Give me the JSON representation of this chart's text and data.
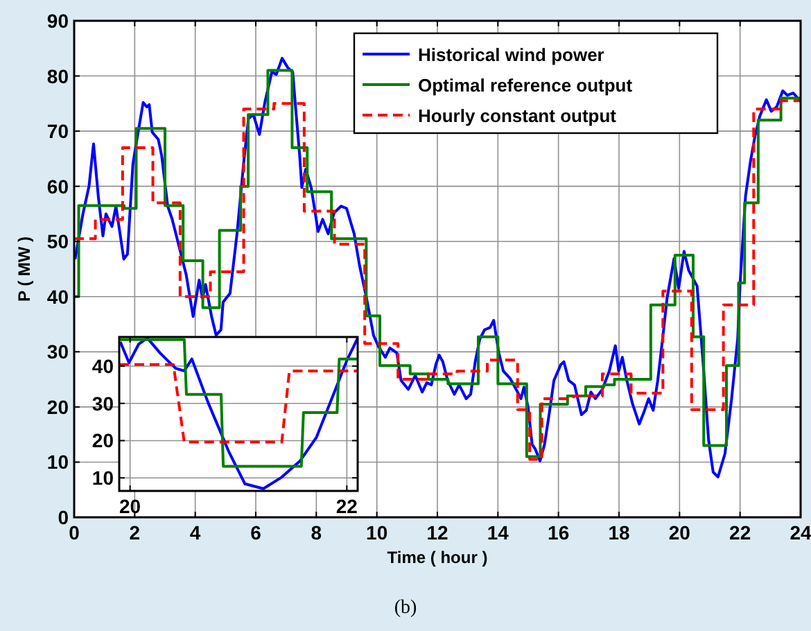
{
  "chart_data": [
    {
      "type": "line",
      "xlabel": "Time ( hour )",
      "ylabel": "P ( MW )",
      "xlim": [
        0,
        24
      ],
      "ylim": [
        0,
        90
      ],
      "xticks": [
        0,
        2,
        4,
        6,
        8,
        10,
        12,
        14,
        16,
        18,
        20,
        22,
        24
      ],
      "yticks": [
        0,
        10,
        20,
        30,
        40,
        50,
        60,
        70,
        80,
        90
      ],
      "grid": true,
      "legend": "top right",
      "annotations": [
        "(b)"
      ],
      "series": [
        {
          "name": "Historical wind power",
          "color": "#0000ff",
          "line_style": "solid",
          "x": [
            0.03,
            0.29,
            0.49,
            0.64,
            0.8,
            0.95,
            1.05,
            1.25,
            1.38,
            1.64,
            1.76,
            1.94,
            2.1,
            2.28,
            2.4,
            2.48,
            2.58,
            2.78,
            2.89,
            3.09,
            3.24,
            3.47,
            3.7,
            3.93,
            4.13,
            4.24,
            4.34,
            4.54,
            4.69,
            4.85,
            4.92,
            5.15,
            5.38,
            5.61,
            5.76,
            5.92,
            6.12,
            6.3,
            6.53,
            6.68,
            6.87,
            7.06,
            7.22,
            7.32,
            7.45,
            7.52,
            7.65,
            7.83,
            8.06,
            8.21,
            8.39,
            8.59,
            8.82,
            9.0,
            9.25,
            9.43,
            9.66,
            9.89,
            10.05,
            10.28,
            10.43,
            10.66,
            10.8,
            11.04,
            11.27,
            11.5,
            11.65,
            11.8,
            11.95,
            12.06,
            12.18,
            12.34,
            12.56,
            12.72,
            12.95,
            13.1,
            13.25,
            13.4,
            13.56,
            13.74,
            13.86,
            14.03,
            14.18,
            14.4,
            14.6,
            14.76,
            14.86,
            15.0,
            15.13,
            15.24,
            15.39,
            15.54,
            15.7,
            15.85,
            16.08,
            16.18,
            16.34,
            16.53,
            16.76,
            16.92,
            17.07,
            17.22,
            17.45,
            17.68,
            17.88,
            17.99,
            18.11,
            18.26,
            18.44,
            18.67,
            18.82,
            18.98,
            19.13,
            19.28,
            19.44,
            19.59,
            19.82,
            19.97,
            20.15,
            20.3,
            20.58,
            20.73,
            20.81,
            20.96,
            21.11,
            21.27,
            21.5,
            21.72,
            21.92,
            22.0,
            22.18,
            22.34,
            22.49,
            22.65,
            22.87,
            23.03,
            23.21,
            23.41,
            23.56,
            23.76,
            23.95
          ],
          "values": [
            46.8,
            55,
            60,
            67.7,
            58,
            51,
            55,
            52.7,
            56.4,
            46.8,
            47.7,
            64,
            69.4,
            75.2,
            74.4,
            74.8,
            69.8,
            68.5,
            65.6,
            56.4,
            54,
            49,
            44,
            36.4,
            43,
            39.7,
            42.2,
            36.4,
            33,
            34,
            39,
            40.6,
            51.4,
            64.8,
            72.3,
            73,
            69.4,
            75.2,
            80.7,
            80.3,
            83.2,
            81.5,
            80.7,
            74,
            65.6,
            59.8,
            63.1,
            59.8,
            51.8,
            54,
            51.4,
            55.2,
            56.4,
            56,
            51.4,
            45.6,
            39.7,
            33,
            31,
            29,
            30.7,
            29.8,
            24.8,
            23.2,
            25.7,
            22.7,
            24.4,
            24,
            27.7,
            29.4,
            28.2,
            24.8,
            22.3,
            24,
            21.5,
            22.3,
            28.2,
            32.3,
            34,
            34.4,
            35.7,
            29.8,
            26.5,
            25.2,
            23.2,
            21.5,
            23.6,
            19.8,
            13.2,
            12.3,
            10.2,
            13.2,
            19,
            24.8,
            27.7,
            28.2,
            24.8,
            24,
            18.6,
            19.4,
            22.7,
            21.5,
            23.2,
            26.5,
            31.1,
            26.5,
            29,
            24.8,
            20.7,
            16.9,
            19,
            21.5,
            19.4,
            24.8,
            32.3,
            39.8,
            46.9,
            41.5,
            48.2,
            44.8,
            41.9,
            31.5,
            25.7,
            14,
            8.2,
            7.3,
            11.5,
            21.5,
            32.3,
            42.3,
            58.2,
            64.4,
            69,
            72.7,
            75.7,
            73.6,
            74.4,
            77.3,
            76.5,
            76.9,
            75.7
          ]
        },
        {
          "name": "Optimal reference output",
          "color": "#008000",
          "type": "step",
          "line_style": "solid",
          "x": [
            0,
            0.15,
            1.65,
            2.05,
            3.0,
            3.6,
            4.25,
            4.8,
            5.5,
            5.75,
            6.4,
            7.2,
            7.7,
            8.5,
            9.65,
            10.1,
            11.1,
            11.7,
            12.35,
            13.35,
            14.0,
            14.95,
            15.4,
            16.3,
            16.9,
            17.5,
            17.85,
            19.05,
            19.85,
            20.45,
            20.8,
            21.55,
            21.95,
            22.15,
            22.6,
            23.35,
            24
          ],
          "values": [
            40,
            56.5,
            56,
            70.5,
            56.5,
            46.5,
            38,
            52,
            60,
            73,
            81,
            67,
            59,
            50.5,
            36.5,
            27.5,
            26,
            25,
            24.2,
            32.7,
            24.2,
            11,
            20.5,
            22,
            23.7,
            24,
            25,
            38.5,
            47.5,
            32.7,
            13,
            27.5,
            42.5,
            57,
            72,
            76,
            76
          ]
        },
        {
          "name": "Hourly constant output",
          "color": "#ff0000",
          "type": "step",
          "line_style": "dashed",
          "x": [
            0,
            0.7,
            1.6,
            2.6,
            3.5,
            4.5,
            5.6,
            6.6,
            7.6,
            8.6,
            9.6,
            10.7,
            11.65,
            12.65,
            13.65,
            14.65,
            15.05,
            15.45,
            16.5,
            17.45,
            18.4,
            19.45,
            20.4,
            21.45,
            22.45,
            23.35,
            24
          ],
          "values": [
            50.5,
            54,
            67,
            57,
            40,
            44.5,
            74,
            75,
            55.5,
            49.5,
            31.5,
            25,
            26,
            26.5,
            28.5,
            19.5,
            10.5,
            21.5,
            22,
            26,
            22.5,
            41,
            19.5,
            38.5,
            74,
            75.5,
            75.5
          ]
        }
      ]
    },
    {
      "type": "line",
      "xlim": [
        19.9,
        22.1
      ],
      "ylim": [
        6.5,
        47.8
      ],
      "xticks": [
        20,
        22
      ],
      "yticks": [
        10,
        20,
        30,
        40
      ],
      "grid": true,
      "series": [
        {
          "color": "#0000ff",
          "line_style": "solid",
          "x": [
            19.91,
            19.99,
            20.08,
            20.16,
            20.28,
            20.42,
            20.5,
            20.57,
            20.72,
            20.91,
            21.06,
            21.23,
            21.4,
            21.57,
            21.72,
            21.89,
            22.0,
            22.1
          ],
          "values": [
            46.5,
            40.9,
            45.9,
            47.5,
            43.4,
            39.4,
            38.7,
            41.9,
            30.2,
            17.1,
            8.4,
            7.1,
            10.2,
            14.6,
            20.9,
            33.4,
            41.5,
            47.5
          ]
        },
        {
          "color": "#008000",
          "line_style": "solid",
          "x": [
            19.9,
            20.5,
            20.52,
            20.84,
            20.86,
            21.58,
            21.6,
            21.91,
            21.93,
            22.1
          ],
          "values": [
            47.1,
            47.1,
            32.4,
            32.4,
            13.1,
            13.1,
            27.5,
            27.5,
            41.9,
            41.9
          ]
        },
        {
          "color": "#ff0000",
          "line_style": "dashed",
          "x": [
            19.9,
            20.4,
            20.5,
            21.4,
            21.47,
            22.1
          ],
          "values": [
            40.4,
            40.4,
            19.6,
            19.6,
            38.7,
            38.7
          ]
        }
      ]
    }
  ]
}
